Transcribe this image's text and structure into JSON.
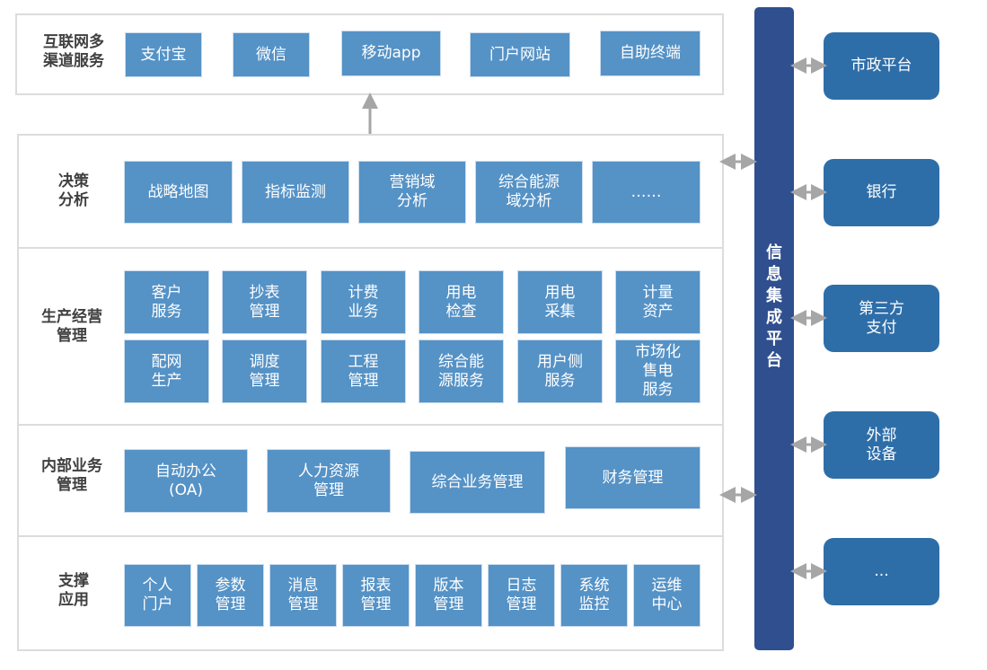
{
  "channels": {
    "label": "互联网多\n渠道服务",
    "items": [
      "支付宝",
      "微信",
      "移动app",
      "门户网站",
      "自助终端"
    ]
  },
  "decision": {
    "label": "决策\n分析",
    "items": [
      "战略地图",
      "指标监测",
      "营销域\n分析",
      "综合能源\n域分析",
      "……"
    ]
  },
  "production": {
    "label": "生产经营\n管理",
    "items": [
      "客户\n服务",
      "抄表\n管理",
      "计费\n业务",
      "用电\n检查",
      "用电\n采集",
      "计量\n资产",
      "配网\n生产",
      "调度\n管理",
      "工程\n管理",
      "综合能\n源服务",
      "用户侧\n服务",
      "市场化\n售电\n服务"
    ]
  },
  "internal": {
    "label": "内部业务\n管理",
    "items": [
      "自动办公\n(OA)",
      "人力资源\n管理",
      "综合业务管理",
      "财务管理"
    ]
  },
  "support": {
    "label": "支撑\n应用",
    "items": [
      "个人\n门户",
      "参数\n管理",
      "消息\n管理",
      "报表\n管理",
      "版本\n管理",
      "日志\n管理",
      "系统\n监控",
      "运维\n中心"
    ]
  },
  "integration": {
    "label": "信\n息\n集\n成\n平\n台"
  },
  "external": [
    "市政平台",
    "银行",
    "第三方\n支付",
    "外部\n设备",
    "..."
  ],
  "colors": {
    "box": "#5592c6",
    "bar": "#2f4f8e",
    "external": "#2e6ea8",
    "arrow": "#a6a6a6"
  }
}
